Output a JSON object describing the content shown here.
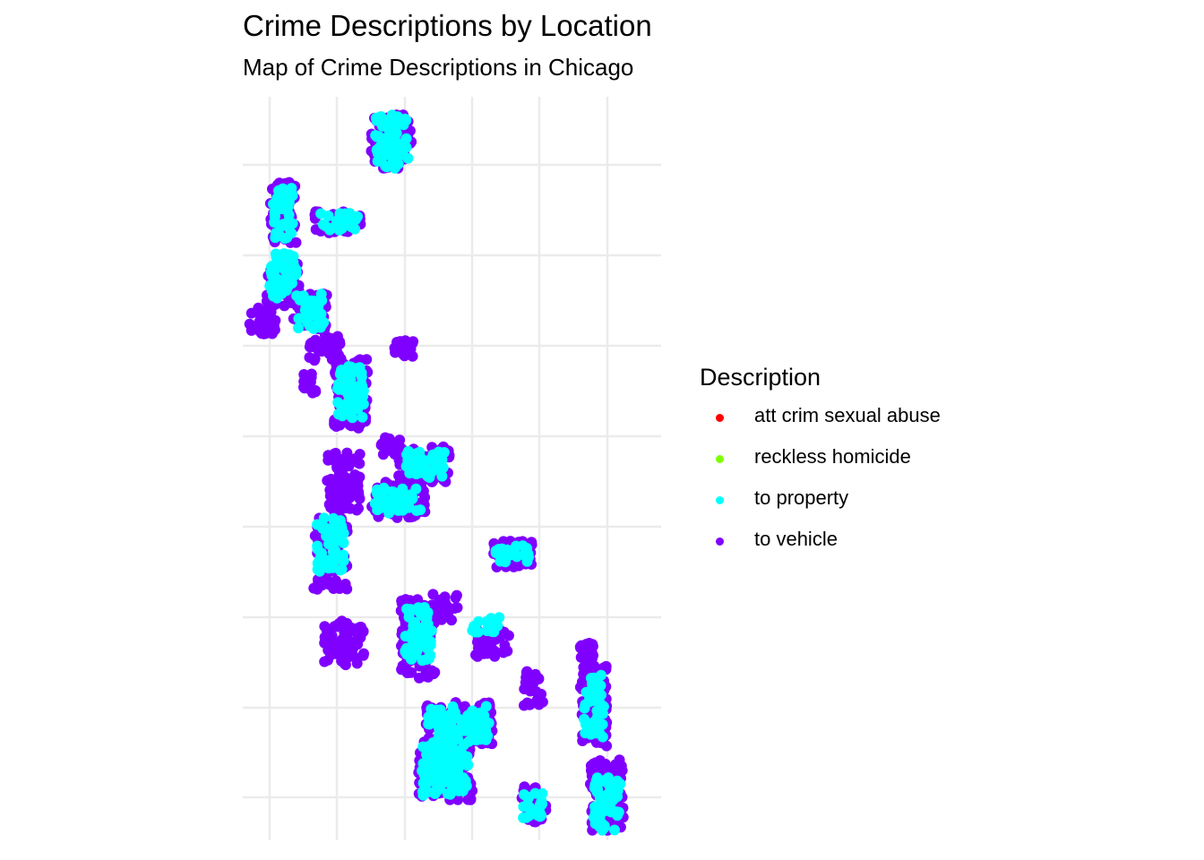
{
  "title": "Crime Descriptions by Location",
  "subtitle": "Map of Crime Descriptions in Chicago",
  "chart_data": {
    "type": "scatter",
    "title": "Crime Descriptions by Location",
    "subtitle": "Map of Crime Descriptions in Chicago",
    "xlabel": "",
    "ylabel": "",
    "axis_tick_labels_shown": false,
    "grid": true,
    "legend": {
      "title": "Description",
      "position": "right",
      "entries": [
        {
          "label": "att crim sexual abuse",
          "color": "#ff0000"
        },
        {
          "label": "reckless homicide",
          "color": "#80ff00"
        },
        {
          "label": "to property",
          "color": "#00ffff"
        },
        {
          "label": "to vehicle",
          "color": "#8000ff"
        }
      ]
    },
    "xlim": [
      0,
      6.2
    ],
    "ylim": [
      0,
      8.3
    ],
    "series": [
      {
        "name": "to vehicle",
        "color": "#8000ff",
        "clusters": [
          [
            2.2,
            7.8,
            0.3,
            0.3
          ],
          [
            0.6,
            7.0,
            0.2,
            0.35
          ],
          [
            1.4,
            6.9,
            0.35,
            0.12
          ],
          [
            0.6,
            6.2,
            0.25,
            0.25
          ],
          [
            0.3,
            5.8,
            0.2,
            0.15
          ],
          [
            1.0,
            5.9,
            0.25,
            0.2
          ],
          [
            1.2,
            5.5,
            0.25,
            0.15
          ],
          [
            2.4,
            5.5,
            0.15,
            0.1
          ],
          [
            1.0,
            5.1,
            0.1,
            0.12
          ],
          [
            1.6,
            5.0,
            0.25,
            0.4
          ],
          [
            2.2,
            4.4,
            0.15,
            0.1
          ],
          [
            1.5,
            4.0,
            0.25,
            0.35
          ],
          [
            2.7,
            4.2,
            0.4,
            0.2
          ],
          [
            2.3,
            3.8,
            0.4,
            0.2
          ],
          [
            1.3,
            3.2,
            0.25,
            0.4
          ],
          [
            4.0,
            3.2,
            0.3,
            0.15
          ],
          [
            2.5,
            2.6,
            0.2,
            0.1
          ],
          [
            3.0,
            2.6,
            0.2,
            0.15
          ],
          [
            1.5,
            2.2,
            0.3,
            0.25
          ],
          [
            2.6,
            2.2,
            0.25,
            0.4
          ],
          [
            3.7,
            2.2,
            0.25,
            0.15
          ],
          [
            5.1,
            2.1,
            0.1,
            0.1
          ],
          [
            4.3,
            1.7,
            0.15,
            0.2
          ],
          [
            5.2,
            1.5,
            0.2,
            0.45
          ],
          [
            3.2,
            1.3,
            0.5,
            0.25
          ],
          [
            3.0,
            0.8,
            0.4,
            0.35
          ],
          [
            4.3,
            0.4,
            0.2,
            0.2
          ],
          [
            5.4,
            0.5,
            0.25,
            0.4
          ]
        ]
      },
      {
        "name": "to property",
        "color": "#00ffff",
        "clusters": [
          [
            2.2,
            7.8,
            0.25,
            0.3
          ],
          [
            0.6,
            7.0,
            0.15,
            0.3
          ],
          [
            1.4,
            6.9,
            0.3,
            0.1
          ],
          [
            0.6,
            6.3,
            0.2,
            0.25
          ],
          [
            1.0,
            5.9,
            0.2,
            0.2
          ],
          [
            1.6,
            5.0,
            0.2,
            0.3
          ],
          [
            2.7,
            4.2,
            0.3,
            0.15
          ],
          [
            2.3,
            3.8,
            0.35,
            0.15
          ],
          [
            1.3,
            3.3,
            0.2,
            0.3
          ],
          [
            4.0,
            3.2,
            0.25,
            0.1
          ],
          [
            2.6,
            2.3,
            0.2,
            0.3
          ],
          [
            3.6,
            2.4,
            0.2,
            0.1
          ],
          [
            3.2,
            1.3,
            0.45,
            0.2
          ],
          [
            3.0,
            0.8,
            0.35,
            0.3
          ],
          [
            5.2,
            1.5,
            0.15,
            0.35
          ],
          [
            4.3,
            0.4,
            0.15,
            0.15
          ],
          [
            5.4,
            0.4,
            0.2,
            0.3
          ]
        ]
      }
    ]
  }
}
